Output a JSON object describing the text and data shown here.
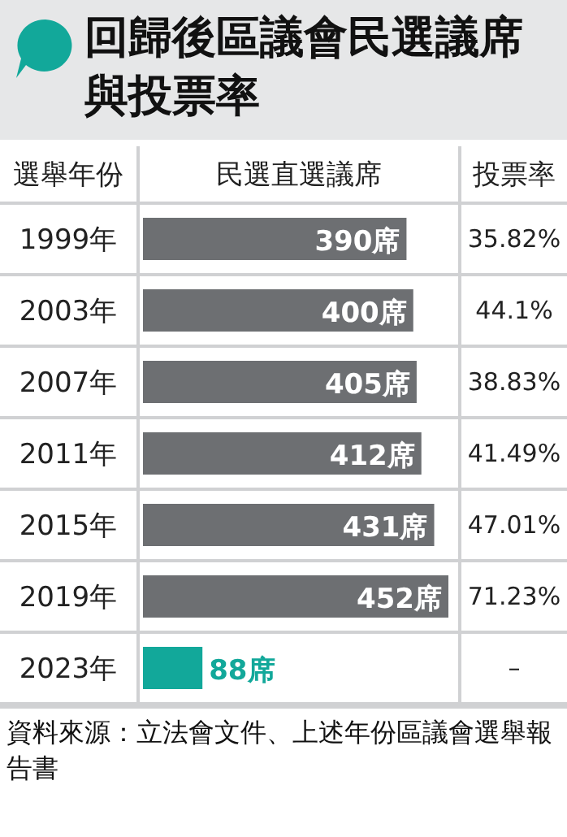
{
  "chart_data": {
    "type": "bar",
    "orientation": "horizontal",
    "title": "回歸後區議會民選議席與投票率",
    "ylabel": "選舉年份",
    "xlabel": "民選直選議席",
    "categories": [
      "1999年",
      "2003年",
      "2007年",
      "2011年",
      "2015年",
      "2019年",
      "2023年"
    ],
    "values": [
      390,
      400,
      405,
      412,
      431,
      452,
      88
    ],
    "value_labels": [
      "390席",
      "400席",
      "405席",
      "412席",
      "431席",
      "452席",
      "88席"
    ],
    "colors": [
      "#6d6f72",
      "#6d6f72",
      "#6d6f72",
      "#6d6f72",
      "#6d6f72",
      "#6d6f72",
      "#12a89a"
    ],
    "annotations": [
      "投票率",
      "35.82%",
      "44.1%",
      "38.83%",
      "41.49%",
      "47.01%",
      "71.23%",
      "–",
      "資料來源：立法會文件、上述年份區議會選舉報告書"
    ]
  }
}
